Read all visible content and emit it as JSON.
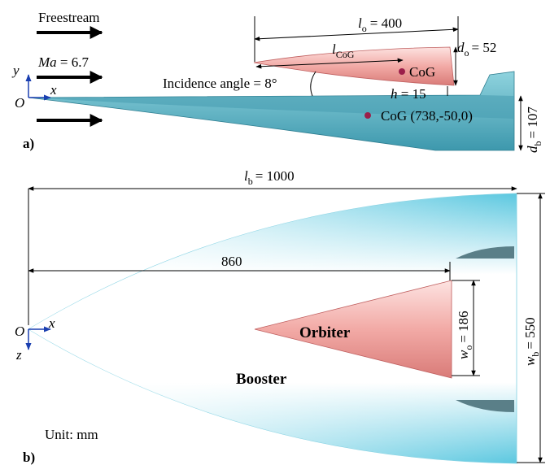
{
  "panel_a": {
    "label": "a)",
    "freestream": "Freestream",
    "mach": {
      "symbol": "Ma",
      "value": "= 6.7"
    },
    "axes": {
      "origin": "O",
      "x": "x",
      "y": "y"
    },
    "incidence": "Incidence angle = 8°",
    "orbiter_length": {
      "symbol": "l",
      "sub": "o",
      "value": "= 400"
    },
    "cog_length": {
      "symbol": "l",
      "sub": "CoG"
    },
    "orbiter_diameter": {
      "symbol": "d",
      "sub": "o",
      "value": "= 52"
    },
    "orbiter_cog": "CoG",
    "gap": {
      "symbol": "h",
      "value": "= 15"
    },
    "booster_cog": "CoG (738,-50,0)",
    "booster_height": {
      "symbol": "d",
      "sub": "b",
      "value": "= 107"
    }
  },
  "panel_b": {
    "label": "b)",
    "booster_length": {
      "symbol": "l",
      "sub": "b",
      "value": "= 1000"
    },
    "orbiter_position": "860",
    "axes": {
      "origin": "O",
      "x": "x",
      "z": "z"
    },
    "orbiter": "Orbiter",
    "booster": "Booster",
    "orbiter_width": {
      "symbol": "w",
      "sub": "o",
      "value": "= 186"
    },
    "booster_width": {
      "symbol": "w",
      "sub": "b",
      "value": "= 550"
    },
    "unit": "Unit: mm"
  }
}
